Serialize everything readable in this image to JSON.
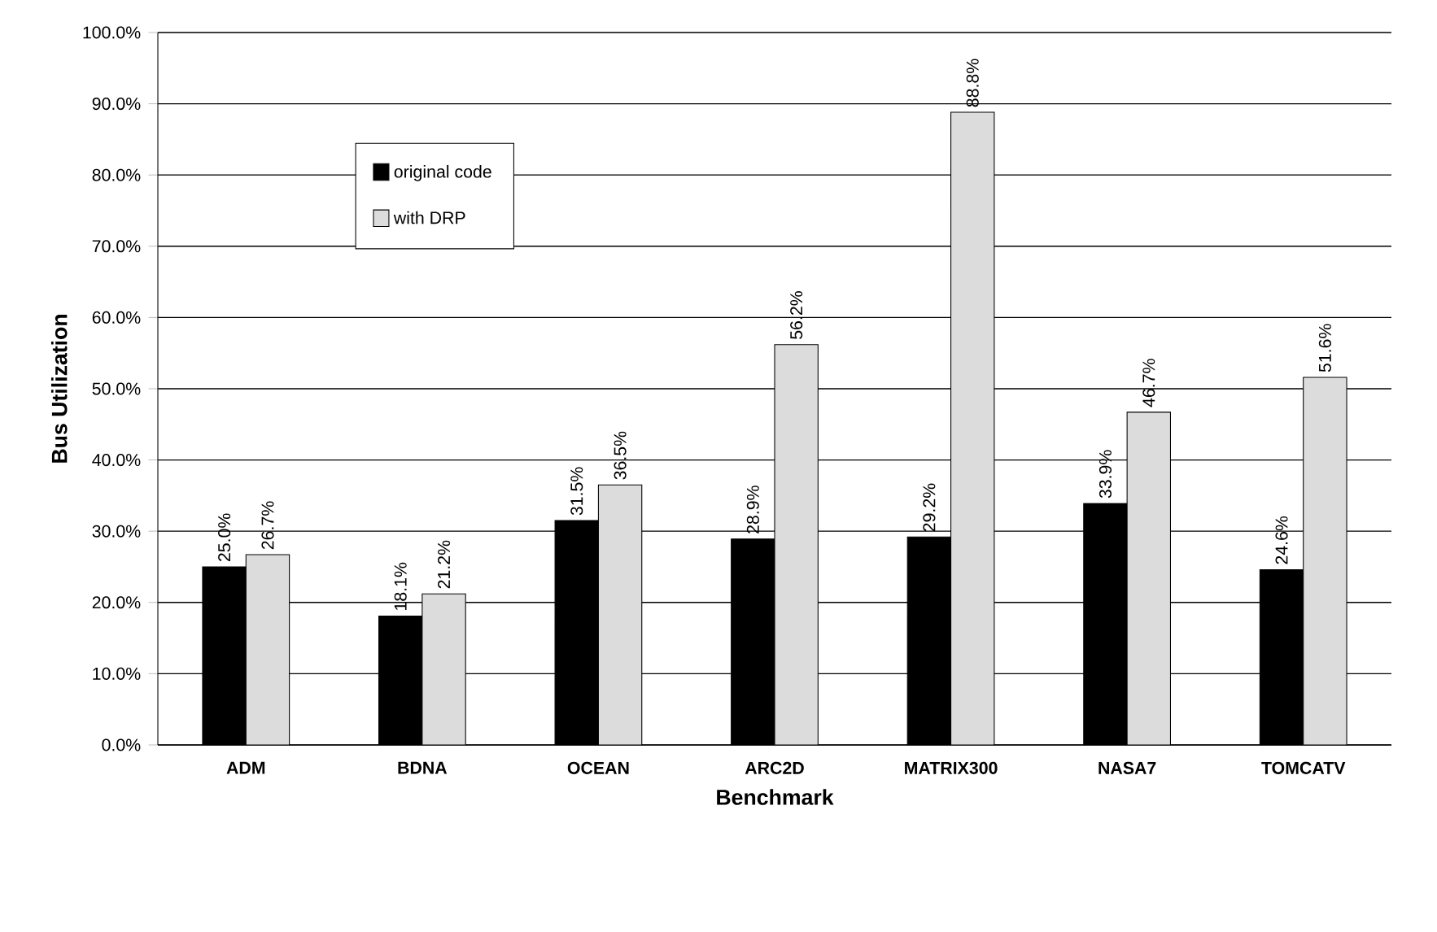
{
  "chart_data": {
    "type": "bar",
    "xlabel": "Benchmark",
    "ylabel": "Bus Utilization",
    "categories": [
      "ADM",
      "BDNA",
      "OCEAN",
      "ARC2D",
      "MATRIX300",
      "NASA7",
      "TOMCATV"
    ],
    "series": [
      {
        "name": "original code",
        "color": "#000000",
        "values": [
          25.0,
          18.1,
          31.5,
          28.9,
          29.2,
          33.9,
          24.6
        ],
        "value_labels": [
          "25.0%",
          "18.1%",
          "31.5%",
          "28.9%",
          "29.2%",
          "33.9%",
          "24.6%"
        ]
      },
      {
        "name": "with DRP",
        "color": "#dcdcdc",
        "values": [
          26.7,
          21.2,
          36.5,
          56.2,
          88.8,
          46.7,
          51.6
        ],
        "value_labels": [
          "26.7%",
          "21.2%",
          "36.5%",
          "56.2%",
          "88.8%",
          "46.7%",
          "51.6%"
        ]
      }
    ],
    "ylim": [
      0,
      100
    ],
    "yticks": [
      {
        "value": 0,
        "label": "0.0%"
      },
      {
        "value": 10,
        "label": "10.0%"
      },
      {
        "value": 20,
        "label": "20.0%"
      },
      {
        "value": 30,
        "label": "30.0%"
      },
      {
        "value": 40,
        "label": "40.0%"
      },
      {
        "value": 50,
        "label": "50.0%"
      },
      {
        "value": 60,
        "label": "60.0%"
      },
      {
        "value": 70,
        "label": "70.0%"
      },
      {
        "value": 80,
        "label": "80.0%"
      },
      {
        "value": 90,
        "label": "90.0%"
      },
      {
        "value": 100,
        "label": "100.0%"
      }
    ],
    "grid": "y",
    "legend": "top left"
  }
}
